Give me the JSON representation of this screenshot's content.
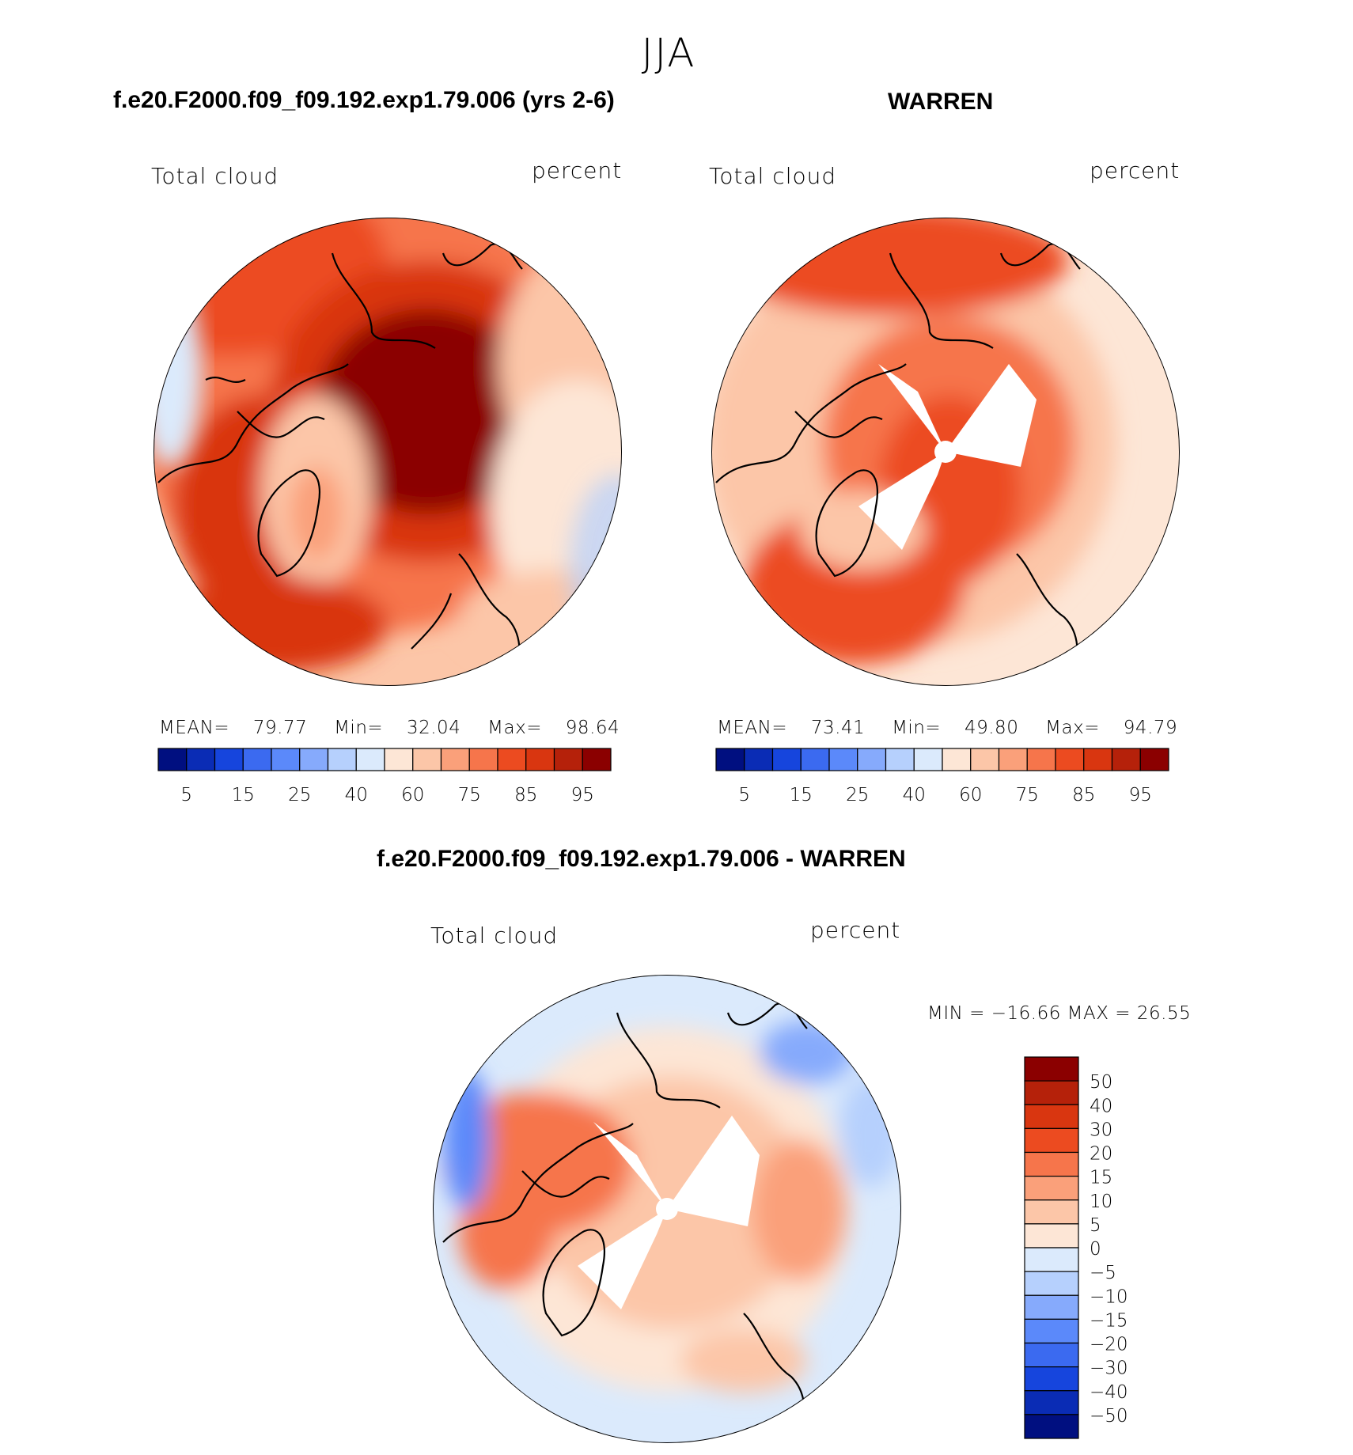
{
  "page": {
    "title": "JJA"
  },
  "panels": {
    "left": {
      "heading": "f.e20.F2000.f09_f09.192.exp1.79.006 (yrs 2-6)",
      "variable": "Total cloud",
      "units": "percent",
      "stats": {
        "mean_label": "MEAN=",
        "mean": "79.77",
        "min_label": "Min=",
        "min": "32.04",
        "max_label": "Max=",
        "max": "98.64"
      }
    },
    "right": {
      "heading": "WARREN",
      "variable": "Total cloud",
      "units": "percent",
      "stats": {
        "mean_label": "MEAN=",
        "mean": "73.41",
        "min_label": "Min=",
        "min": "49.80",
        "max_label": "Max=",
        "max": "94.79"
      }
    },
    "diff": {
      "heading": "f.e20.F2000.f09_f09.192.exp1.79.006 - WARREN",
      "variable": "Total cloud",
      "units": "percent",
      "minmax": "MIN = −16.66 MAX =   26.55"
    }
  },
  "chart_data": [
    {
      "type": "heatmap",
      "title": "f.e20.F2000.f09_f09.192.exp1.79.006 (yrs 2-6)",
      "projection": "north polar stereographic",
      "variable": "Total cloud",
      "units": "percent",
      "mean": 79.77,
      "min": 32.04,
      "max": 98.64,
      "colorbar_levels": [
        5,
        10,
        15,
        20,
        25,
        30,
        40,
        50,
        60,
        70,
        75,
        80,
        85,
        90,
        95
      ],
      "colorbar_tick_labels": [
        "5",
        "15",
        "25",
        "40",
        "60",
        "75",
        "85",
        "95"
      ],
      "colors": [
        "#000f80",
        "#0a2cb5",
        "#1645dd",
        "#3b6af0",
        "#5b89fa",
        "#86aafc",
        "#b6d0fd",
        "#dbeafc",
        "#fde6d6",
        "#fcc6a8",
        "#faa07a",
        "#f6754b",
        "#ec4b20",
        "#d93610",
        "#b5210a",
        "#8b0000"
      ]
    },
    {
      "type": "heatmap",
      "title": "WARREN",
      "projection": "north polar stereographic",
      "variable": "Total cloud",
      "units": "percent",
      "mean": 73.41,
      "min": 49.8,
      "max": 94.79,
      "colorbar_levels": [
        5,
        10,
        15,
        20,
        25,
        30,
        40,
        50,
        60,
        70,
        75,
        80,
        85,
        90,
        95
      ],
      "colorbar_tick_labels": [
        "5",
        "15",
        "25",
        "40",
        "60",
        "75",
        "85",
        "95"
      ],
      "colors": [
        "#000f80",
        "#0a2cb5",
        "#1645dd",
        "#3b6af0",
        "#5b89fa",
        "#86aafc",
        "#b6d0fd",
        "#dbeafc",
        "#fde6d6",
        "#fcc6a8",
        "#faa07a",
        "#f6754b",
        "#ec4b20",
        "#d93610",
        "#b5210a",
        "#8b0000"
      ]
    },
    {
      "type": "heatmap",
      "title": "f.e20.F2000.f09_f09.192.exp1.79.006 - WARREN",
      "projection": "north polar stereographic",
      "variable": "Total cloud",
      "units": "percent",
      "min": -16.66,
      "max": 26.55,
      "colorbar_levels": [
        50,
        40,
        30,
        20,
        15,
        10,
        5,
        0,
        -5,
        -10,
        -15,
        -20,
        -30,
        -40,
        -50
      ],
      "colorbar_tick_labels": [
        "50",
        "40",
        "30",
        "20",
        "15",
        "10",
        "5",
        "0",
        "−5",
        "−10",
        "−15",
        "−20",
        "−30",
        "−40",
        "−50"
      ],
      "colors": [
        "#8b0000",
        "#b5210a",
        "#d93610",
        "#ec4b20",
        "#f6754b",
        "#faa07a",
        "#fcc6a8",
        "#fde6d6",
        "#dbeafc",
        "#b6d0fd",
        "#86aafc",
        "#5b89fa",
        "#3b6af0",
        "#1645dd",
        "#0a2cb5",
        "#000f80"
      ]
    }
  ]
}
